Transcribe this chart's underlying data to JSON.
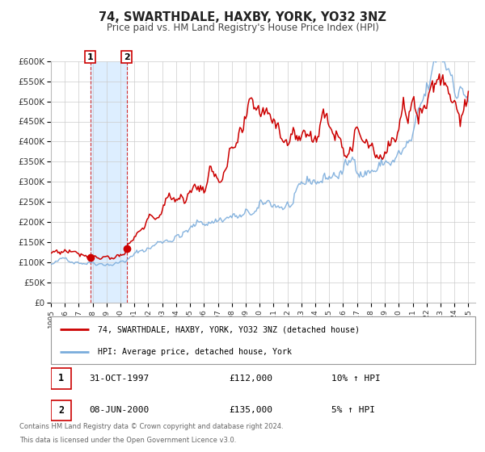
{
  "title": "74, SWARTHDALE, HAXBY, YORK, YO32 3NZ",
  "subtitle": "Price paid vs. HM Land Registry's House Price Index (HPI)",
  "ylim": [
    0,
    600000
  ],
  "xlim_start": 1995.0,
  "xlim_end": 2025.5,
  "yticks": [
    0,
    50000,
    100000,
    150000,
    200000,
    250000,
    300000,
    350000,
    400000,
    450000,
    500000,
    550000,
    600000
  ],
  "ytick_labels": [
    "£0",
    "£50K",
    "£100K",
    "£150K",
    "£200K",
    "£250K",
    "£300K",
    "£350K",
    "£400K",
    "£450K",
    "£500K",
    "£550K",
    "£600K"
  ],
  "xtick_labels": [
    "1995",
    "1996",
    "1997",
    "1998",
    "1999",
    "2000",
    "2001",
    "2002",
    "2003",
    "2004",
    "2005",
    "2006",
    "2007",
    "2008",
    "2009",
    "2010",
    "2011",
    "2012",
    "2013",
    "2014",
    "2015",
    "2016",
    "2017",
    "2018",
    "2019",
    "2020",
    "2021",
    "2022",
    "2023",
    "2024",
    "2025"
  ],
  "sale1_x": 1997.833,
  "sale1_y": 112000,
  "sale1_date": "31-OCT-1997",
  "sale1_price": "£112,000",
  "sale1_hpi": "10% ↑ HPI",
  "sale2_x": 2000.44,
  "sale2_y": 135000,
  "sale2_date": "08-JUN-2000",
  "sale2_price": "£135,000",
  "sale2_hpi": "5% ↑ HPI",
  "line1_color": "#cc0000",
  "line2_color": "#7aacdc",
  "shaded_region_color": "#ddeeff",
  "legend1_label": "74, SWARTHDALE, HAXBY, YORK, YO32 3NZ (detached house)",
  "legend2_label": "HPI: Average price, detached house, York",
  "footer1": "Contains HM Land Registry data © Crown copyright and database right 2024.",
  "footer2": "This data is licensed under the Open Government Licence v3.0.",
  "background_color": "#ffffff",
  "grid_color": "#cccccc"
}
